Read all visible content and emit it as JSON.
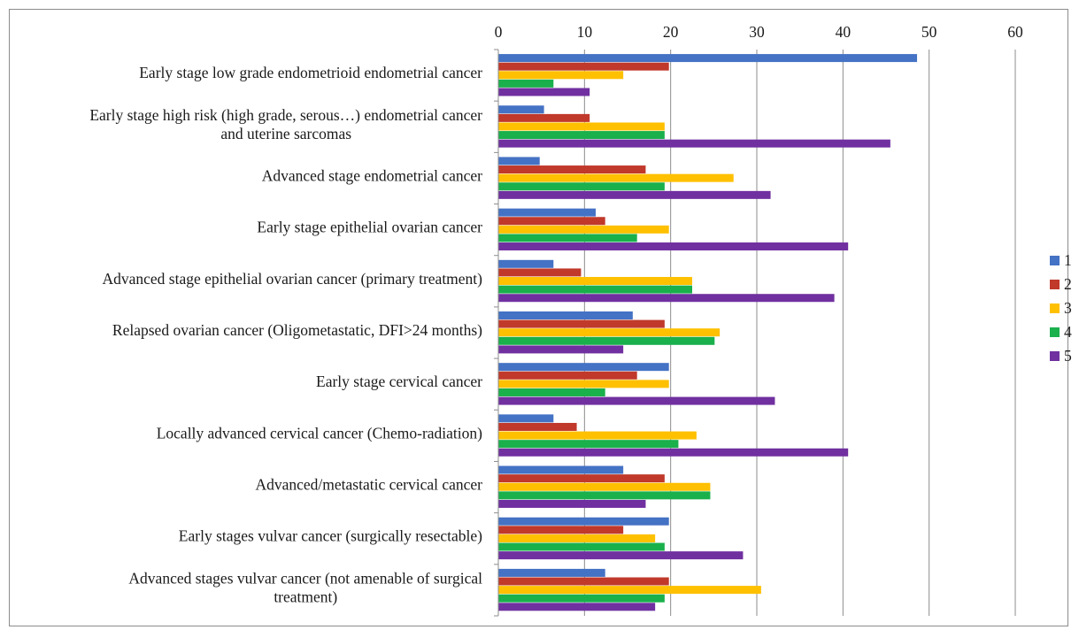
{
  "chart_data": {
    "type": "bar",
    "orientation": "horizontal",
    "categories": [
      [
        "Early stage low grade endometrioid endometrial cancer"
      ],
      [
        "Early stage high risk (high grade, serous…) endometrial cancer",
        "and uterine sarcomas"
      ],
      [
        "Advanced stage endometrial cancer"
      ],
      [
        "Early stage epithelial ovarian cancer"
      ],
      [
        "Advanced stage epithelial ovarian cancer (primary treatment)"
      ],
      [
        "Relapsed ovarian cancer (Oligometastatic, DFI>24 months)"
      ],
      [
        "Early stage cervical cancer"
      ],
      [
        "Locally advanced cervical cancer (Chemo-radiation)"
      ],
      [
        "Advanced/metastatic cervical cancer"
      ],
      [
        "Early stages vulvar cancer (surgically resectable)"
      ],
      [
        "Advanced stages vulvar cancer (not amenable of surgical",
        "treatment)"
      ]
    ],
    "series": [
      {
        "name": "1",
        "color": "#4472c4",
        "values": [
          48.6,
          5.3,
          4.8,
          11.3,
          6.4,
          15.6,
          19.8,
          6.4,
          14.5,
          19.8,
          12.4
        ]
      },
      {
        "name": "2",
        "color": "#c0392b",
        "values": [
          19.8,
          10.6,
          17.1,
          12.4,
          9.6,
          19.3,
          16.1,
          9.1,
          19.3,
          14.5,
          19.8
        ]
      },
      {
        "name": "3",
        "color": "#ffc000",
        "values": [
          14.5,
          19.3,
          27.3,
          19.8,
          22.5,
          25.7,
          19.8,
          23.0,
          24.6,
          18.2,
          30.5
        ]
      },
      {
        "name": "4",
        "color": "#1ab04c",
        "values": [
          6.4,
          19.3,
          19.3,
          16.1,
          22.5,
          25.1,
          12.4,
          20.9,
          24.6,
          19.3,
          19.3
        ]
      },
      {
        "name": "5",
        "color": "#7030a0",
        "values": [
          10.6,
          45.5,
          31.6,
          40.6,
          39.0,
          14.5,
          32.1,
          40.6,
          17.1,
          28.4,
          18.2
        ]
      }
    ],
    "xlim": [
      0,
      60
    ],
    "x_ticks": [
      0,
      10,
      20,
      30,
      40,
      50,
      60
    ],
    "x_axis_position": "top",
    "grid": true,
    "legend_position": "right"
  }
}
